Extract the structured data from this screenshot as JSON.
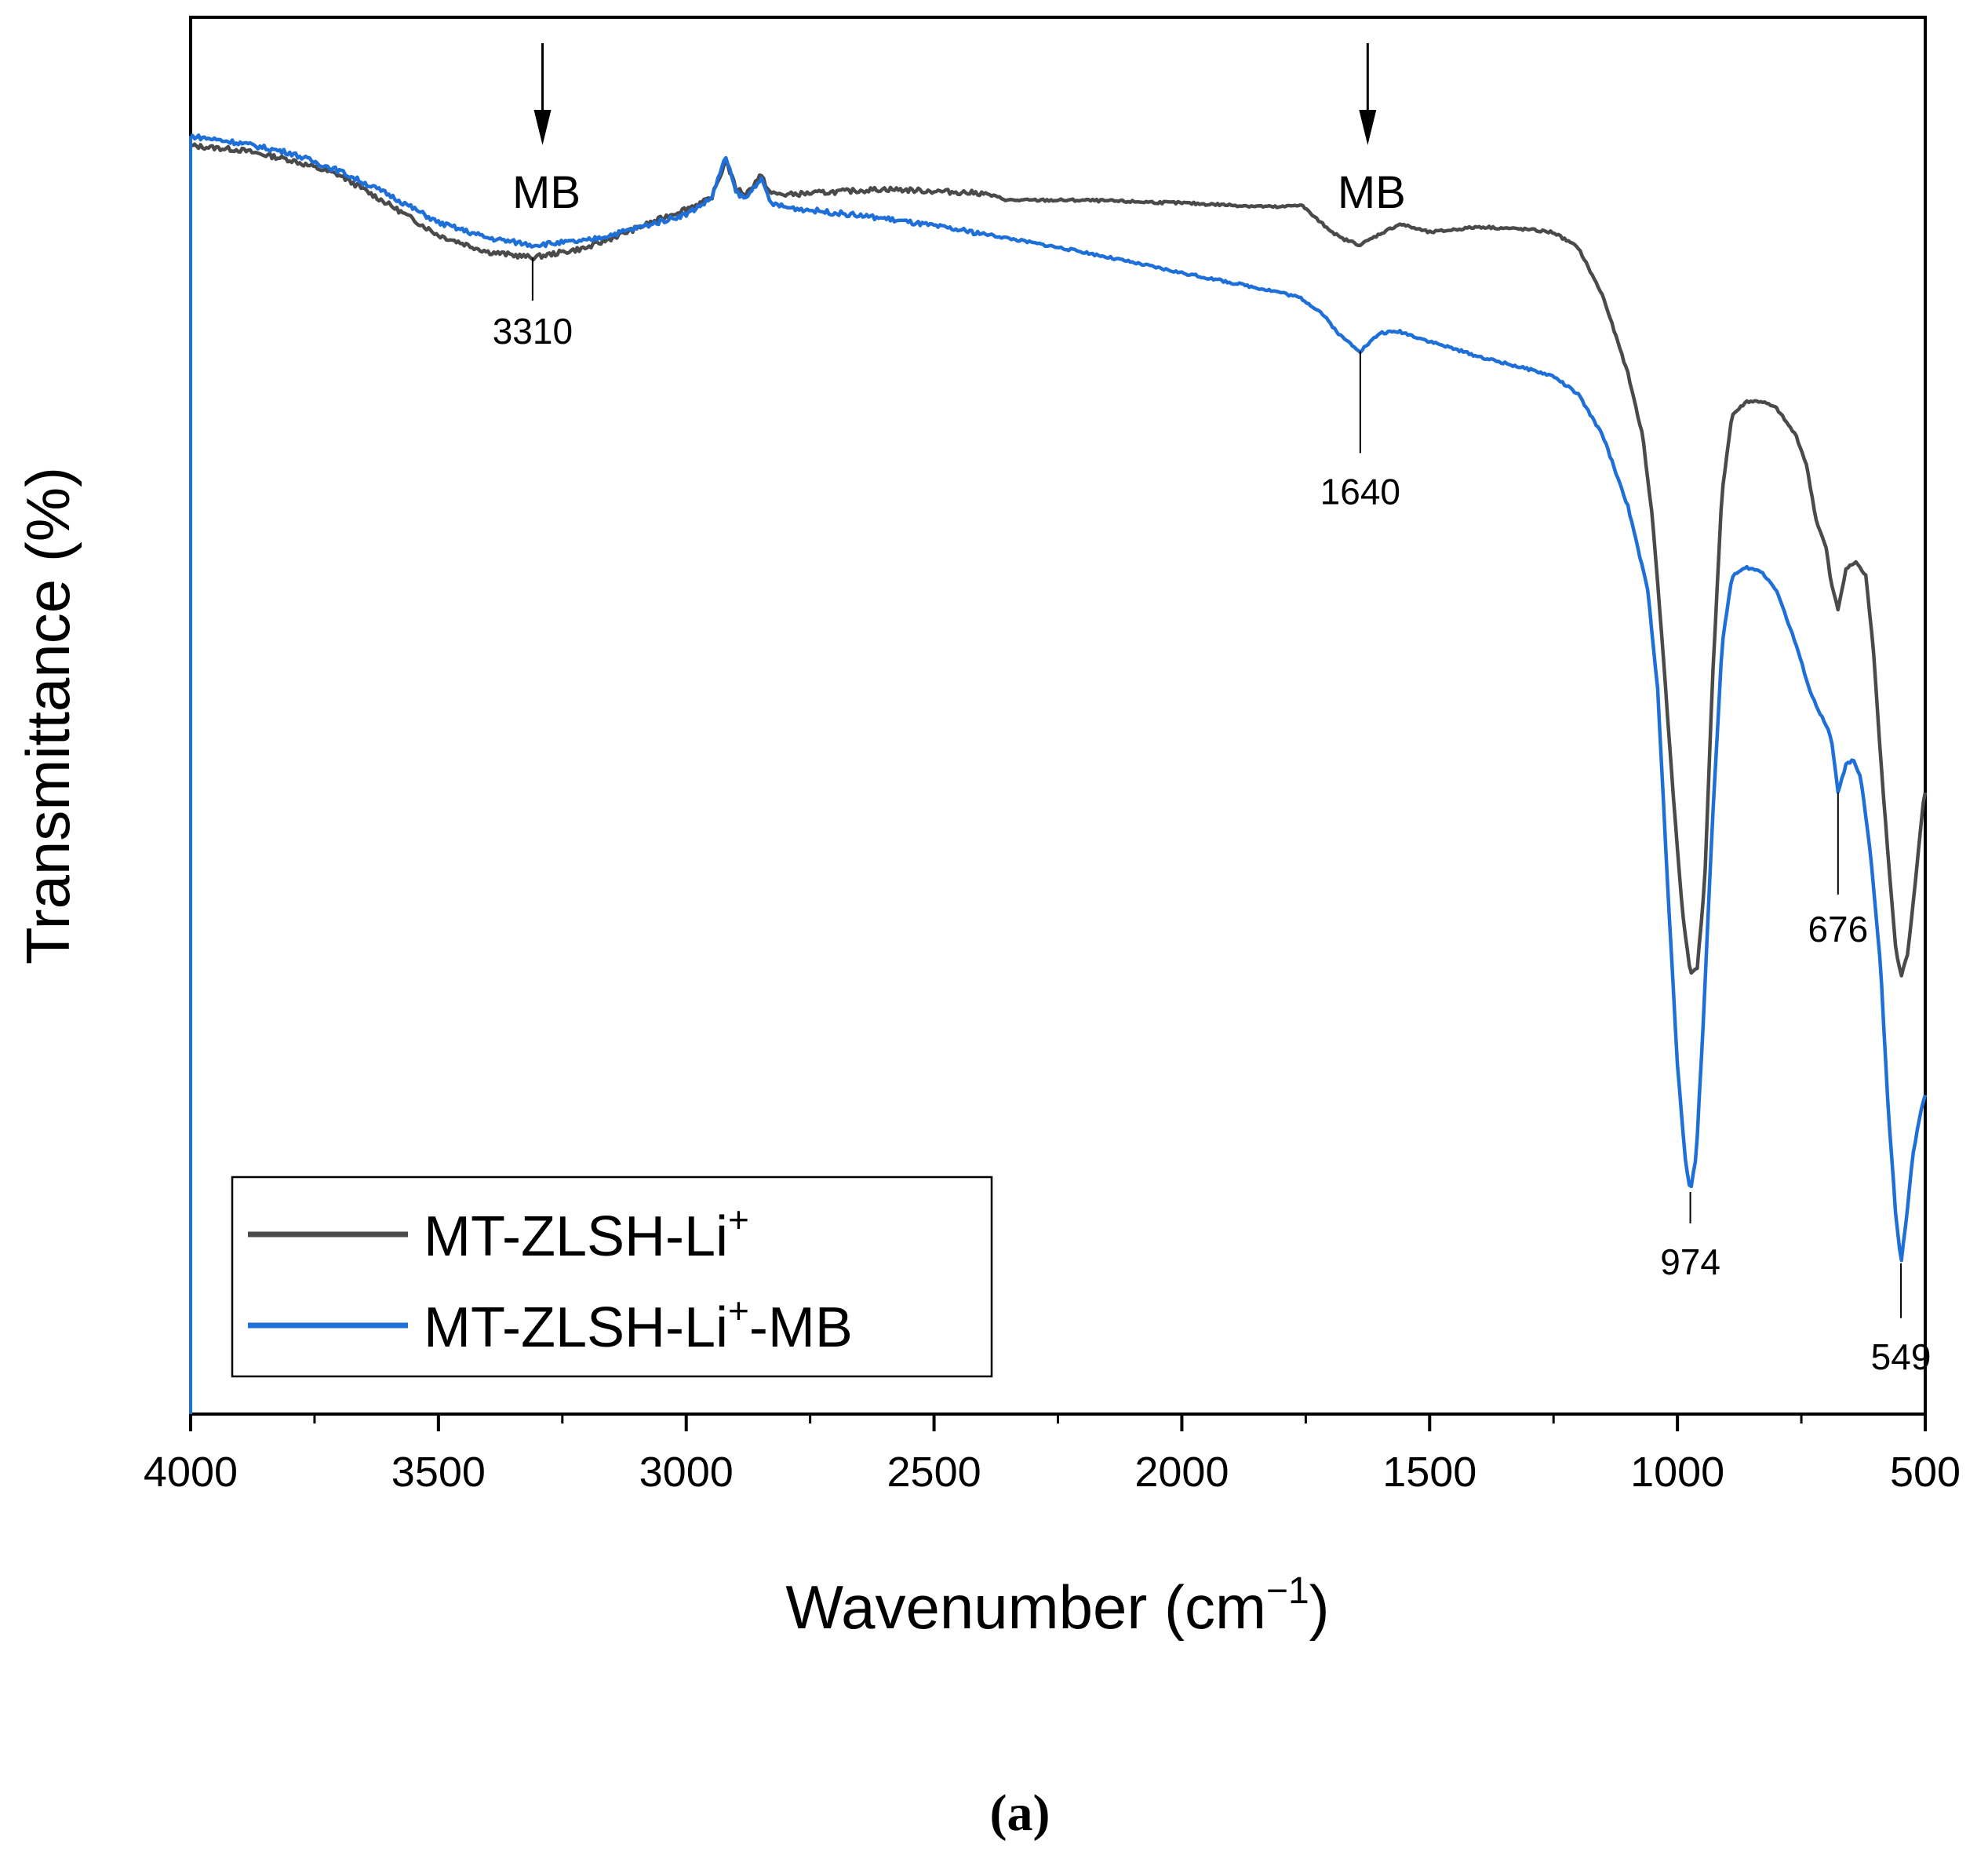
{
  "chart_data": {
    "type": "line",
    "xlabel": "Wavenumber (cm",
    "xlabel_sup": "−1",
    "xlabel_close": ")",
    "ylabel": "Transmittance (%)",
    "xlim": [
      4000,
      500
    ],
    "ylim": [
      0,
      100
    ],
    "x_reversed": true,
    "y_ticks_visible": false,
    "xticks": [
      4000,
      3500,
      3000,
      2500,
      2000,
      1500,
      1000,
      500
    ],
    "xtick_labels": [
      "4000",
      "3500",
      "3000",
      "2500",
      "2000",
      "1500",
      "1000",
      "500"
    ],
    "series": [
      {
        "name": "MT-ZLSH-Li",
        "name_sup": "+",
        "name_suffix": "",
        "color": "#4a4a4a",
        "points": [
          [
            4000,
            90.8
          ],
          [
            3900,
            90.5
          ],
          [
            3800,
            89.8
          ],
          [
            3700,
            88.7
          ],
          [
            3600,
            86.6
          ],
          [
            3500,
            84.4
          ],
          [
            3400,
            83.2
          ],
          [
            3310,
            82.8
          ],
          [
            3200,
            83.5
          ],
          [
            3100,
            84.9
          ],
          [
            3000,
            86.3
          ],
          [
            2950,
            87.0
          ],
          [
            2920,
            89.7
          ],
          [
            2900,
            87.8
          ],
          [
            2880,
            87.3
          ],
          [
            2850,
            88.7
          ],
          [
            2830,
            87.4
          ],
          [
            2800,
            87.3
          ],
          [
            2600,
            87.7
          ],
          [
            2400,
            87.4
          ],
          [
            2350,
            86.9
          ],
          [
            2200,
            86.9
          ],
          [
            2000,
            86.7
          ],
          [
            1800,
            86.4
          ],
          [
            1760,
            86.6
          ],
          [
            1720,
            85.3
          ],
          [
            1680,
            84.2
          ],
          [
            1640,
            83.7
          ],
          [
            1600,
            84.5
          ],
          [
            1560,
            85.2
          ],
          [
            1500,
            84.6
          ],
          [
            1400,
            85.0
          ],
          [
            1300,
            84.8
          ],
          [
            1250,
            84.6
          ],
          [
            1200,
            83.5
          ],
          [
            1150,
            80.0
          ],
          [
            1100,
            74.5
          ],
          [
            1070,
            70.0
          ],
          [
            1050,
            64.0
          ],
          [
            1030,
            55.0
          ],
          [
            1010,
            45.0
          ],
          [
            990,
            36.0
          ],
          [
            974,
            31.5
          ],
          [
            960,
            32.0
          ],
          [
            945,
            38.0
          ],
          [
            930,
            52.0
          ],
          [
            910,
            66.0
          ],
          [
            890,
            71.5
          ],
          [
            860,
            72.5
          ],
          [
            830,
            72.5
          ],
          [
            800,
            72.0
          ],
          [
            760,
            70.0
          ],
          [
            740,
            68.0
          ],
          [
            720,
            64.0
          ],
          [
            700,
            62.0
          ],
          [
            690,
            59.5
          ],
          [
            676,
            57.6
          ],
          [
            660,
            60.5
          ],
          [
            640,
            61.0
          ],
          [
            620,
            60.0
          ],
          [
            605,
            55.0
          ],
          [
            590,
            47.0
          ],
          [
            575,
            40.0
          ],
          [
            560,
            33.5
          ],
          [
            549,
            31.3
          ],
          [
            535,
            33.0
          ],
          [
            520,
            38.0
          ],
          [
            505,
            43.5
          ],
          [
            500,
            44.5
          ]
        ]
      },
      {
        "name": "MT-ZLSH-Li",
        "name_sup": "+",
        "name_suffix": "-MB",
        "color": "#1f6fd8",
        "points": [
          [
            4000,
            91.5
          ],
          [
            3900,
            91.0
          ],
          [
            3800,
            90.3
          ],
          [
            3700,
            89.0
          ],
          [
            3600,
            87.3
          ],
          [
            3500,
            85.3
          ],
          [
            3400,
            84.2
          ],
          [
            3310,
            83.7
          ],
          [
            3200,
            84.0
          ],
          [
            3100,
            84.9
          ],
          [
            3000,
            85.9
          ],
          [
            2950,
            87.0
          ],
          [
            2920,
            90.0
          ],
          [
            2900,
            87.5
          ],
          [
            2880,
            87.0
          ],
          [
            2850,
            88.5
          ],
          [
            2830,
            86.7
          ],
          [
            2800,
            86.4
          ],
          [
            2600,
            85.6
          ],
          [
            2400,
            84.5
          ],
          [
            2200,
            83.2
          ],
          [
            2000,
            81.7
          ],
          [
            1800,
            80.3
          ],
          [
            1760,
            79.9
          ],
          [
            1720,
            78.9
          ],
          [
            1680,
            77.2
          ],
          [
            1640,
            76.1
          ],
          [
            1600,
            77.4
          ],
          [
            1560,
            77.5
          ],
          [
            1500,
            76.8
          ],
          [
            1400,
            75.7
          ],
          [
            1300,
            74.8
          ],
          [
            1250,
            74.3
          ],
          [
            1200,
            73.0
          ],
          [
            1150,
            70.0
          ],
          [
            1100,
            65.0
          ],
          [
            1060,
            59.0
          ],
          [
            1040,
            52.0
          ],
          [
            1020,
            38.0
          ],
          [
            1000,
            25.0
          ],
          [
            985,
            18.5
          ],
          [
            974,
            15.9
          ],
          [
            962,
            18.5
          ],
          [
            948,
            28.0
          ],
          [
            930,
            42.0
          ],
          [
            910,
            55.0
          ],
          [
            890,
            60.0
          ],
          [
            860,
            60.6
          ],
          [
            830,
            60.3
          ],
          [
            800,
            59.0
          ],
          [
            760,
            55.0
          ],
          [
            730,
            51.5
          ],
          [
            710,
            50.0
          ],
          [
            690,
            48.5
          ],
          [
            676,
            44.5
          ],
          [
            660,
            46.5
          ],
          [
            645,
            46.8
          ],
          [
            630,
            45.5
          ],
          [
            610,
            40.0
          ],
          [
            590,
            32.0
          ],
          [
            575,
            22.0
          ],
          [
            560,
            14.5
          ],
          [
            549,
            10.8
          ],
          [
            538,
            14.0
          ],
          [
            525,
            18.5
          ],
          [
            510,
            21.5
          ],
          [
            500,
            22.8
          ]
        ]
      }
    ],
    "annotations": [
      {
        "label": "3310",
        "x": 3310,
        "series": 0
      },
      {
        "label": "1640",
        "x": 1640,
        "series": 1
      },
      {
        "label": "974",
        "x": 974,
        "series": 1
      },
      {
        "label": "676",
        "x": 676,
        "series": 1
      },
      {
        "label": "549",
        "x": 549,
        "series": 1
      }
    ],
    "arrows": [
      {
        "label": "MB",
        "x": 3290
      },
      {
        "label": "MB",
        "x": 1625
      }
    ],
    "legend_position": "bottom-left"
  },
  "panel_label": "(a)"
}
